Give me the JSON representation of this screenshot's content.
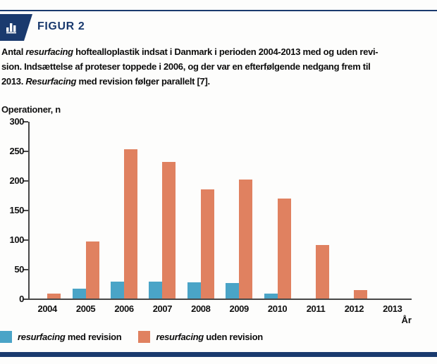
{
  "header": {
    "title": "FIGUR 2",
    "icon": "bar-chart-icon"
  },
  "caption": {
    "lines": [
      [
        {
          "t": "Antal "
        },
        {
          "t": "resurfacing",
          "i": true
        },
        {
          "t": " hoftealloplastik indsat i Danmark i perioden 2004-2013 med og uden revi-"
        }
      ],
      [
        {
          "t": "sion. Indsættelse af proteser toppede i 2006, og der var en efterfølgende nedgang frem til"
        }
      ],
      [
        {
          "t": "2013. "
        },
        {
          "t": "Resurfacing",
          "i": true
        },
        {
          "t": " med revision følger parallelt [7]."
        }
      ]
    ]
  },
  "chart_data": {
    "type": "bar",
    "ylabel": "Operationer, n",
    "xlabel": "År",
    "categories": [
      "2004",
      "2005",
      "2006",
      "2007",
      "2008",
      "2009",
      "2010",
      "2011",
      "2012",
      "2013"
    ],
    "series": [
      {
        "name": "resurfacing med revision",
        "color": "#4aa4c7",
        "values": [
          0,
          17,
          29,
          29,
          28,
          27,
          9,
          0,
          0,
          0
        ]
      },
      {
        "name": "resurfacing uden revision",
        "color": "#e08160",
        "values": [
          9,
          97,
          253,
          232,
          186,
          202,
          170,
          91,
          15,
          0
        ]
      }
    ],
    "ylim": [
      0,
      300
    ],
    "yticks": [
      0,
      50,
      100,
      150,
      200,
      250,
      300
    ],
    "grid": false,
    "legend_position": "bottom"
  },
  "legend": {
    "items": [
      {
        "color": "#4aa4c7",
        "segments": [
          {
            "t": "resurfacing",
            "i": true
          },
          {
            "t": " med revision"
          }
        ]
      },
      {
        "color": "#e08160",
        "segments": [
          {
            "t": "resurfacing",
            "i": true
          },
          {
            "t": " uden revision"
          }
        ]
      }
    ]
  },
  "colors": {
    "navy": "#1a3a6e",
    "blue": "#4aa4c7",
    "orange": "#e08160",
    "axis": "#474747",
    "text": "#0d0d0d"
  }
}
